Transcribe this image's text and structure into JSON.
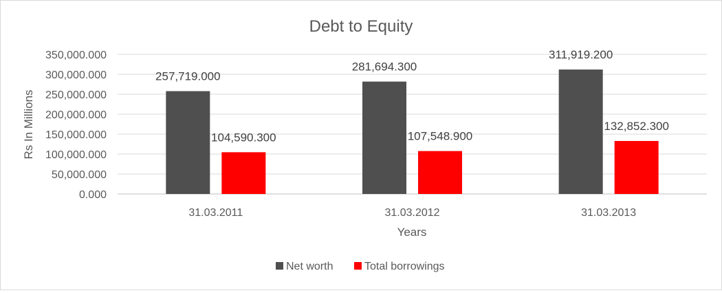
{
  "chart_data": {
    "type": "bar",
    "title": "Debt to Equity",
    "xlabel": "Years",
    "ylabel": "Rs In Millions",
    "categories": [
      "31.03.2011",
      "31.03.2012",
      "31.03.2013"
    ],
    "series": [
      {
        "name": "Net worth",
        "color": "#4f4f4f",
        "values": [
          257719.0,
          281694.3,
          311919.2
        ],
        "labels": [
          "257,719.000",
          "281,694.300",
          "311,919.200"
        ]
      },
      {
        "name": "Total borrowings",
        "color": "#ff0000",
        "values": [
          104590.3,
          107548.9,
          132852.3
        ],
        "labels": [
          "104,590.300",
          "107,548.900",
          "132,852.300"
        ]
      }
    ],
    "ylim": [
      0,
      350000
    ],
    "yticks": [
      0,
      50000,
      100000,
      150000,
      200000,
      250000,
      300000,
      350000
    ],
    "ytick_labels": [
      "0.000",
      "50,000.000",
      "100,000.000",
      "150,000.000",
      "200,000.000",
      "250,000.000",
      "300,000.000",
      "350,000.000"
    ],
    "grid": true,
    "legend_position": "bottom"
  }
}
